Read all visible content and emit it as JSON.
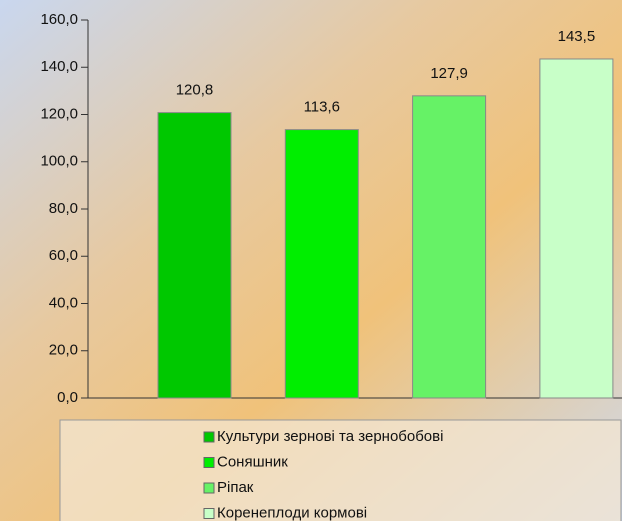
{
  "chart_data": {
    "type": "bar",
    "series": [
      {
        "name": "Культури зернові та зернобобові",
        "color": "#00c800",
        "values": [
          120.8
        ],
        "value_labels": [
          "120,8"
        ]
      },
      {
        "name": "Соняшник",
        "color": "#00ee00",
        "values": [
          113.6
        ],
        "value_labels": [
          "113,6"
        ]
      },
      {
        "name": "Ріпак",
        "color": "#66f266",
        "values": [
          127.9
        ],
        "value_labels": [
          "127,9"
        ]
      },
      {
        "name": "Коренеплоди кормові",
        "color": "#c8ffc8",
        "values": [
          143.5
        ],
        "value_labels": [
          "143,5"
        ]
      }
    ],
    "ylim": [
      0,
      160
    ],
    "yticks": [
      {
        "value": 0,
        "label": "0,0"
      },
      {
        "value": 20,
        "label": "20,0"
      },
      {
        "value": 40,
        "label": "40,0"
      },
      {
        "value": 60,
        "label": "60,0"
      },
      {
        "value": 80,
        "label": "80,0"
      },
      {
        "value": 100,
        "label": "100,0"
      },
      {
        "value": 120,
        "label": "120,0"
      },
      {
        "value": 140,
        "label": "140,0"
      },
      {
        "value": 160,
        "label": "160,0"
      }
    ]
  }
}
